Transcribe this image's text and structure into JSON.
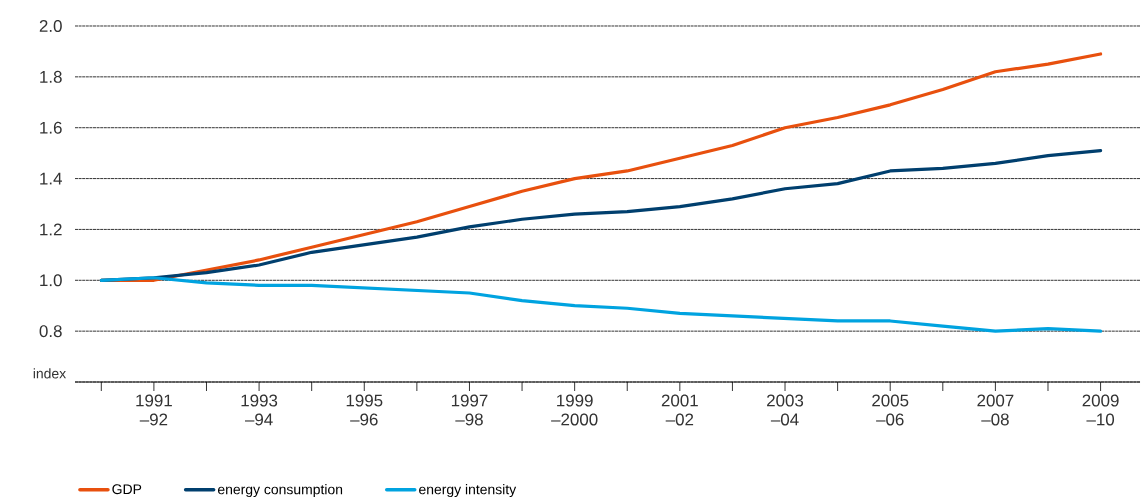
{
  "chart_data": {
    "type": "line",
    "ylabel": "index",
    "categories": [
      null,
      "1991 –92",
      null,
      "1993 –94",
      null,
      "1995 –96",
      null,
      "1997 –98",
      null,
      "1999 –2000",
      null,
      "2001 –02",
      null,
      "2003 –04",
      null,
      "2005 –06",
      null,
      "2007 –08",
      null,
      "2009 –10"
    ],
    "series": [
      {
        "name": "GDP",
        "color": "#e8500e",
        "values": [
          1.0,
          1.0,
          1.04,
          1.08,
          1.13,
          1.18,
          1.23,
          1.29,
          1.35,
          1.4,
          1.43,
          1.48,
          1.53,
          1.6,
          1.64,
          1.69,
          1.75,
          1.82,
          1.85,
          1.89
        ]
      },
      {
        "name": "energy consumption",
        "color": "#003f6e",
        "values": [
          1.0,
          1.01,
          1.03,
          1.06,
          1.11,
          1.14,
          1.17,
          1.21,
          1.24,
          1.26,
          1.27,
          1.29,
          1.32,
          1.36,
          1.38,
          1.43,
          1.44,
          1.46,
          1.49,
          1.51
        ]
      },
      {
        "name": "energy intensity",
        "color": "#00a3e0",
        "values": [
          1.0,
          1.01,
          0.99,
          0.98,
          0.98,
          0.97,
          0.96,
          0.95,
          0.92,
          0.9,
          0.89,
          0.87,
          0.86,
          0.85,
          0.84,
          0.84,
          0.82,
          0.8,
          0.81,
          0.8
        ]
      }
    ],
    "ylim": [
      0.6,
      2.0
    ],
    "yticks": [
      {
        "value": 0.6,
        "label": null
      },
      0.8,
      {
        "value": 1,
        "label": "1.0"
      },
      1.2,
      1.4,
      1.6,
      1.8,
      {
        "value": 2,
        "label": "2.0"
      }
    ],
    "grid": "y",
    "legend": "bottom",
    "marker": "none",
    "line_style": "solid"
  }
}
